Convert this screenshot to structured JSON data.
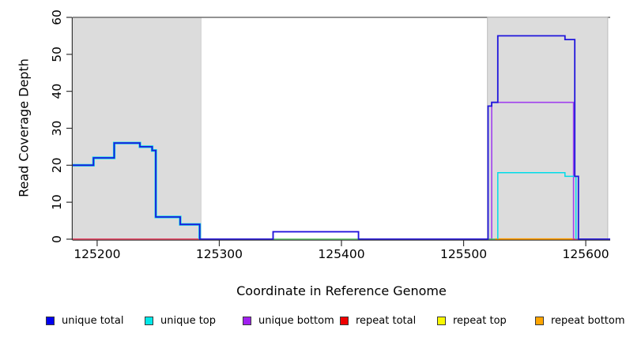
{
  "chart_data": {
    "type": "line",
    "subtype": "step-coverage-plot",
    "title": "",
    "xlabel": "Coordinate in Reference Genome",
    "ylabel": "Read Coverage Depth",
    "xlim": [
      125180,
      125620
    ],
    "ylim": [
      0,
      60
    ],
    "x_ticks": [
      125200,
      125300,
      125400,
      125500,
      125600
    ],
    "y_ticks": [
      0,
      10,
      20,
      30,
      40,
      50,
      60
    ],
    "grid": false,
    "legend_position": "bottom",
    "axis_color": "#333333",
    "top_border_color": "#6e6e6e",
    "shaded_regions": [
      {
        "name": "repeat-region-left",
        "x0": 125180.6,
        "x1": 125285,
        "fill": "#dcdcdc",
        "stroke": "#c6c6c6"
      },
      {
        "name": "repeat-region-right",
        "x0": 125519.5,
        "x1": 125618,
        "fill": "#dcdcdc",
        "stroke": "#bcbcbc"
      }
    ],
    "series": [
      {
        "name": "unique-bottom",
        "label": "unique bottom",
        "color": "#a040ee",
        "paths": [
          {
            "w": 1.6,
            "pts": [
              [
                125180,
                0
              ],
              [
                125344,
                0
              ],
              [
                125344,
                2
              ],
              [
                125414,
                2
              ],
              [
                125414,
                0
              ],
              [
                125523,
                0
              ],
              [
                125523,
                37
              ],
              [
                125590,
                37
              ],
              [
                125590,
                0
              ],
              [
                125620,
                0
              ]
            ]
          }
        ]
      },
      {
        "name": "top-strand-overlap-blend",
        "label": "cyan+yellow overlap (appears green)",
        "color": "#52c25e",
        "paths": [
          {
            "w": 1.5,
            "pts": [
              [
                125344,
                0
              ],
              [
                125418,
                0
              ]
            ]
          },
          {
            "w": 1.5,
            "pts": [
              [
                125519,
                0
              ],
              [
                125527,
                0
              ]
            ]
          }
        ]
      },
      {
        "name": "repeat-bottom",
        "label": "repeat bottom",
        "color": "#ff9c00",
        "paths": [
          {
            "w": 2.2,
            "pts": [
              [
                125526,
                0
              ],
              [
                125589,
                0
              ]
            ]
          }
        ]
      },
      {
        "name": "repeat-top",
        "label": "repeat top",
        "color": "#f8f800",
        "paths": []
      },
      {
        "name": "repeat-total",
        "label": "repeat total",
        "color": "#f4404f",
        "paths": [
          {
            "w": 1.4,
            "pts": [
              [
                125180,
                0
              ],
              [
                125285,
                0
              ]
            ]
          },
          {
            "w": 1.4,
            "pts": [
              [
                125589,
                0
              ],
              [
                125593,
                0
              ]
            ]
          }
        ]
      },
      {
        "name": "unique-top",
        "label": "unique top",
        "color": "#00dce8",
        "paths": [
          {
            "w": 3.2,
            "pts": [
              [
                125180,
                20
              ],
              [
                125197,
                20
              ],
              [
                125197,
                22
              ],
              [
                125214,
                22
              ],
              [
                125214,
                26
              ],
              [
                125235,
                26
              ],
              [
                125235,
                25
              ],
              [
                125245,
                25
              ],
              [
                125245,
                24
              ],
              [
                125248,
                24
              ],
              [
                125248,
                6
              ],
              [
                125268,
                6
              ],
              [
                125268,
                4
              ],
              [
                125284,
                4
              ],
              [
                125284,
                0
              ]
            ]
          },
          {
            "w": 1.5,
            "pts": [
              [
                125528,
                0
              ],
              [
                125528,
                18
              ],
              [
                125583,
                18
              ],
              [
                125583,
                17
              ],
              [
                125592,
                17
              ],
              [
                125592,
                0
              ]
            ]
          }
        ]
      },
      {
        "name": "unique-total",
        "label": "unique total",
        "color": "#2016dc",
        "paths": [
          {
            "w": 1.8,
            "pts": [
              [
                125180,
                20
              ],
              [
                125197,
                20
              ],
              [
                125197,
                22
              ],
              [
                125214,
                22
              ],
              [
                125214,
                26
              ],
              [
                125235,
                26
              ],
              [
                125235,
                25
              ],
              [
                125245,
                25
              ],
              [
                125245,
                24
              ],
              [
                125248,
                24
              ],
              [
                125248,
                6
              ],
              [
                125268,
                6
              ],
              [
                125268,
                4
              ],
              [
                125284,
                4
              ],
              [
                125284,
                0
              ],
              [
                125344,
                0
              ],
              [
                125344,
                2
              ],
              [
                125414,
                2
              ],
              [
                125414,
                0
              ],
              [
                125520,
                0
              ],
              [
                125520,
                36
              ],
              [
                125523,
                36
              ],
              [
                125523,
                37
              ],
              [
                125528,
                37
              ],
              [
                125528,
                55
              ],
              [
                125583,
                55
              ],
              [
                125583,
                54
              ],
              [
                125591,
                54
              ],
              [
                125591,
                17
              ],
              [
                125594,
                17
              ],
              [
                125594,
                0
              ],
              [
                125620,
                0
              ]
            ]
          }
        ]
      }
    ],
    "legend": [
      {
        "label": "unique total",
        "color": "#0000f0"
      },
      {
        "label": "unique top",
        "color": "#00e8e8"
      },
      {
        "label": "unique bottom",
        "color": "#a020f0"
      },
      {
        "label": "repeat total",
        "color": "#f00000"
      },
      {
        "label": "repeat top",
        "color": "#f8f800"
      },
      {
        "label": "repeat bottom",
        "color": "#ffa500"
      }
    ]
  }
}
